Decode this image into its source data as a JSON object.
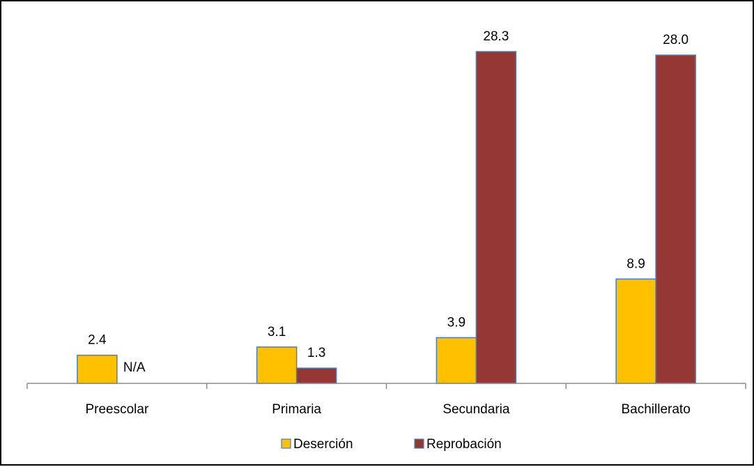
{
  "chart_data": {
    "type": "bar",
    "categories": [
      "Preescolar",
      "Primaria",
      "Secundaria",
      "Bachillerato"
    ],
    "series": [
      {
        "name": "Deserción",
        "color": "#FFC000",
        "values": [
          2.4,
          3.1,
          3.9,
          8.9
        ],
        "labels": [
          "2.4",
          "3.1",
          "3.9",
          "8.9"
        ]
      },
      {
        "name": "Reprobación",
        "color": "#953735",
        "values": [
          null,
          1.3,
          28.3,
          28.0
        ],
        "labels": [
          "N/A",
          "1.3",
          "28.3",
          "28.0"
        ]
      }
    ],
    "title": "",
    "xlabel": "",
    "ylabel": "",
    "ylim": [
      0,
      30
    ],
    "grid": false,
    "legend_position": "bottom",
    "bar_outline_color": "#4a7ebb"
  }
}
